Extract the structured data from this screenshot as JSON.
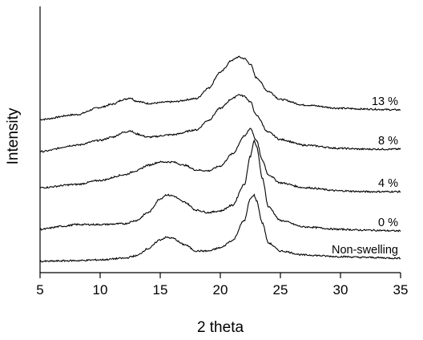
{
  "chart_data": {
    "type": "line",
    "title": "",
    "xlabel": "2 theta",
    "ylabel": "Intensity",
    "xlim": [
      5,
      35
    ],
    "xticks": [
      5,
      10,
      15,
      20,
      25,
      30,
      35
    ],
    "xtick_labels": [
      "5",
      "10",
      "15",
      "20",
      "25",
      "30",
      "35"
    ],
    "y_ticks_shown": false,
    "grid": false,
    "legend": "labels at right end of each curve",
    "note": "curves are vertically offset; y values are relative intensity (arbitrary units)",
    "series": [
      {
        "name": "13 %",
        "points": [
          [
            5,
            181
          ],
          [
            8,
            187
          ],
          [
            10,
            196
          ],
          [
            11,
            200
          ],
          [
            12,
            206
          ],
          [
            12.5,
            208
          ],
          [
            13,
            204
          ],
          [
            14,
            201
          ],
          [
            16,
            203
          ],
          [
            18,
            207
          ],
          [
            19,
            220
          ],
          [
            20,
            240
          ],
          [
            21,
            255
          ],
          [
            21.5,
            259
          ],
          [
            22,
            257
          ],
          [
            22.5,
            250
          ],
          [
            23,
            233
          ],
          [
            24,
            216
          ],
          [
            25,
            206
          ],
          [
            27,
            199
          ],
          [
            30,
            195
          ],
          [
            32,
            194
          ],
          [
            35,
            193
          ]
        ]
      },
      {
        "name": "8 %",
        "points": [
          [
            5,
            141
          ],
          [
            8,
            149
          ],
          [
            10,
            155
          ],
          [
            11,
            159
          ],
          [
            12,
            165
          ],
          [
            12.5,
            167
          ],
          [
            13,
            163
          ],
          [
            14,
            159
          ],
          [
            16,
            162
          ],
          [
            18,
            168
          ],
          [
            19,
            180
          ],
          [
            20,
            195
          ],
          [
            21,
            207
          ],
          [
            21.5,
            212
          ],
          [
            22,
            210
          ],
          [
            22.5,
            203
          ],
          [
            23,
            186
          ],
          [
            24,
            165
          ],
          [
            25,
            156
          ],
          [
            27,
            149
          ],
          [
            30,
            145
          ],
          [
            32,
            144
          ],
          [
            35,
            144
          ]
        ]
      },
      {
        "name": "4 %",
        "points": [
          [
            5,
            96
          ],
          [
            8,
            100
          ],
          [
            10,
            105
          ],
          [
            12,
            112
          ],
          [
            13,
            117
          ],
          [
            14,
            124
          ],
          [
            15,
            128
          ],
          [
            16,
            128
          ],
          [
            17,
            124
          ],
          [
            18,
            118
          ],
          [
            19,
            117
          ],
          [
            20,
            123
          ],
          [
            21,
            138
          ],
          [
            22,
            160
          ],
          [
            22.5,
            170
          ],
          [
            23,
            155
          ],
          [
            23.5,
            130
          ],
          [
            24,
            112
          ],
          [
            25,
            102
          ],
          [
            27,
            96
          ],
          [
            30,
            92
          ],
          [
            32,
            91
          ],
          [
            35,
            91
          ]
        ]
      },
      {
        "name": "0 %",
        "points": [
          [
            5,
            44
          ],
          [
            7,
            48
          ],
          [
            8,
            50
          ],
          [
            10,
            50
          ],
          [
            12,
            51
          ],
          [
            13,
            55
          ],
          [
            14,
            65
          ],
          [
            15,
            82
          ],
          [
            15.5,
            87
          ],
          [
            16,
            86
          ],
          [
            17,
            78
          ],
          [
            18,
            68
          ],
          [
            19,
            65
          ],
          [
            20,
            67
          ],
          [
            21,
            74
          ],
          [
            22,
            100
          ],
          [
            22.5,
            135
          ],
          [
            22.8,
            154
          ],
          [
            23,
            148
          ],
          [
            23.5,
            108
          ],
          [
            24,
            72
          ],
          [
            25,
            55
          ],
          [
            27,
            47
          ],
          [
            30,
            44
          ],
          [
            32,
            43
          ],
          [
            35,
            42
          ]
        ]
      },
      {
        "name": "Non-swelling",
        "points": [
          [
            5,
            4
          ],
          [
            8,
            5
          ],
          [
            10,
            6
          ],
          [
            12,
            8
          ],
          [
            13,
            11
          ],
          [
            14,
            20
          ],
          [
            15,
            31
          ],
          [
            15.5,
            34
          ],
          [
            16,
            33
          ],
          [
            17,
            25
          ],
          [
            18,
            17
          ],
          [
            19,
            17
          ],
          [
            20,
            21
          ],
          [
            21,
            30
          ],
          [
            22,
            55
          ],
          [
            22.5,
            82
          ],
          [
            22.8,
            87
          ],
          [
            23,
            80
          ],
          [
            23.5,
            52
          ],
          [
            24,
            27
          ],
          [
            25,
            17
          ],
          [
            27,
            12
          ],
          [
            30,
            10
          ],
          [
            32,
            9
          ],
          [
            35,
            8
          ]
        ]
      }
    ]
  }
}
